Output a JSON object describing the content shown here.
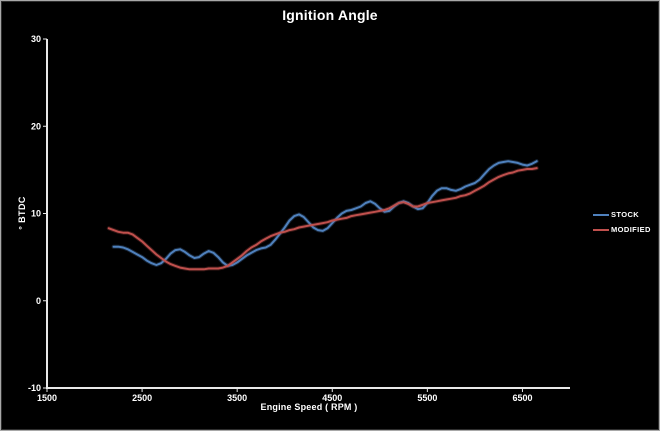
{
  "chart_data": {
    "type": "line",
    "title": "Ignition Angle",
    "xlabel": "Engine Speed ( RPM )",
    "ylabel": "° BTDC",
    "xlim": [
      1500,
      7000
    ],
    "ylim": [
      -10,
      30
    ],
    "x_ticks": [
      1500,
      2500,
      3500,
      4500,
      5500,
      6500
    ],
    "y_ticks": [
      30,
      20,
      10,
      0,
      -10
    ],
    "grid": false,
    "legend_position": "right",
    "colors": {
      "background": "#000000",
      "axis": "#e8e8e8",
      "text": "#ffffff"
    },
    "series": [
      {
        "name": "STOCK",
        "color": "#4F81BD",
        "x_start": 2200,
        "x_step": 50,
        "y": [
          6.2,
          6.2,
          6.1,
          5.9,
          5.6,
          5.3,
          5.0,
          4.6,
          4.3,
          4.1,
          4.3,
          4.8,
          5.4,
          5.8,
          5.9,
          5.6,
          5.2,
          4.9,
          5.0,
          5.4,
          5.7,
          5.5,
          5.0,
          4.4,
          4.0,
          4.1,
          4.4,
          4.8,
          5.2,
          5.5,
          5.8,
          6.0,
          6.1,
          6.4,
          7.0,
          7.7,
          8.4,
          9.2,
          9.7,
          9.9,
          9.6,
          9.0,
          8.4,
          8.1,
          8.0,
          8.3,
          8.9,
          9.5,
          10.0,
          10.3,
          10.4,
          10.6,
          10.8,
          11.2,
          11.4,
          11.1,
          10.6,
          10.2,
          10.3,
          10.8,
          11.2,
          11.4,
          11.2,
          10.8,
          10.5,
          10.6,
          11.2,
          12.0,
          12.6,
          12.9,
          12.9,
          12.7,
          12.6,
          12.8,
          13.1,
          13.3,
          13.5,
          13.9,
          14.5,
          15.1,
          15.5,
          15.8,
          15.9,
          16.0,
          15.9,
          15.8,
          15.6,
          15.5,
          15.7,
          16.0
        ]
      },
      {
        "name": "MODIFIED",
        "color": "#C0504D",
        "x_start": 2150,
        "x_step": 50,
        "y": [
          8.3,
          8.1,
          7.9,
          7.8,
          7.8,
          7.6,
          7.2,
          6.8,
          6.3,
          5.8,
          5.3,
          4.9,
          4.5,
          4.2,
          4.0,
          3.8,
          3.7,
          3.6,
          3.6,
          3.6,
          3.6,
          3.7,
          3.7,
          3.7,
          3.8,
          4.0,
          4.4,
          4.8,
          5.2,
          5.7,
          6.1,
          6.4,
          6.8,
          7.1,
          7.4,
          7.6,
          7.8,
          7.9,
          8.1,
          8.2,
          8.4,
          8.5,
          8.6,
          8.7,
          8.8,
          8.9,
          9.0,
          9.2,
          9.3,
          9.4,
          9.5,
          9.7,
          9.8,
          9.9,
          10.0,
          10.1,
          10.2,
          10.3,
          10.4,
          10.6,
          10.9,
          11.2,
          11.3,
          11.1,
          10.8,
          10.8,
          11.0,
          11.2,
          11.3,
          11.4,
          11.5,
          11.6,
          11.7,
          11.8,
          12.0,
          12.1,
          12.3,
          12.6,
          12.9,
          13.2,
          13.6,
          13.9,
          14.2,
          14.4,
          14.6,
          14.7,
          14.9,
          15.0,
          15.1,
          15.1,
          15.2
        ]
      }
    ]
  }
}
